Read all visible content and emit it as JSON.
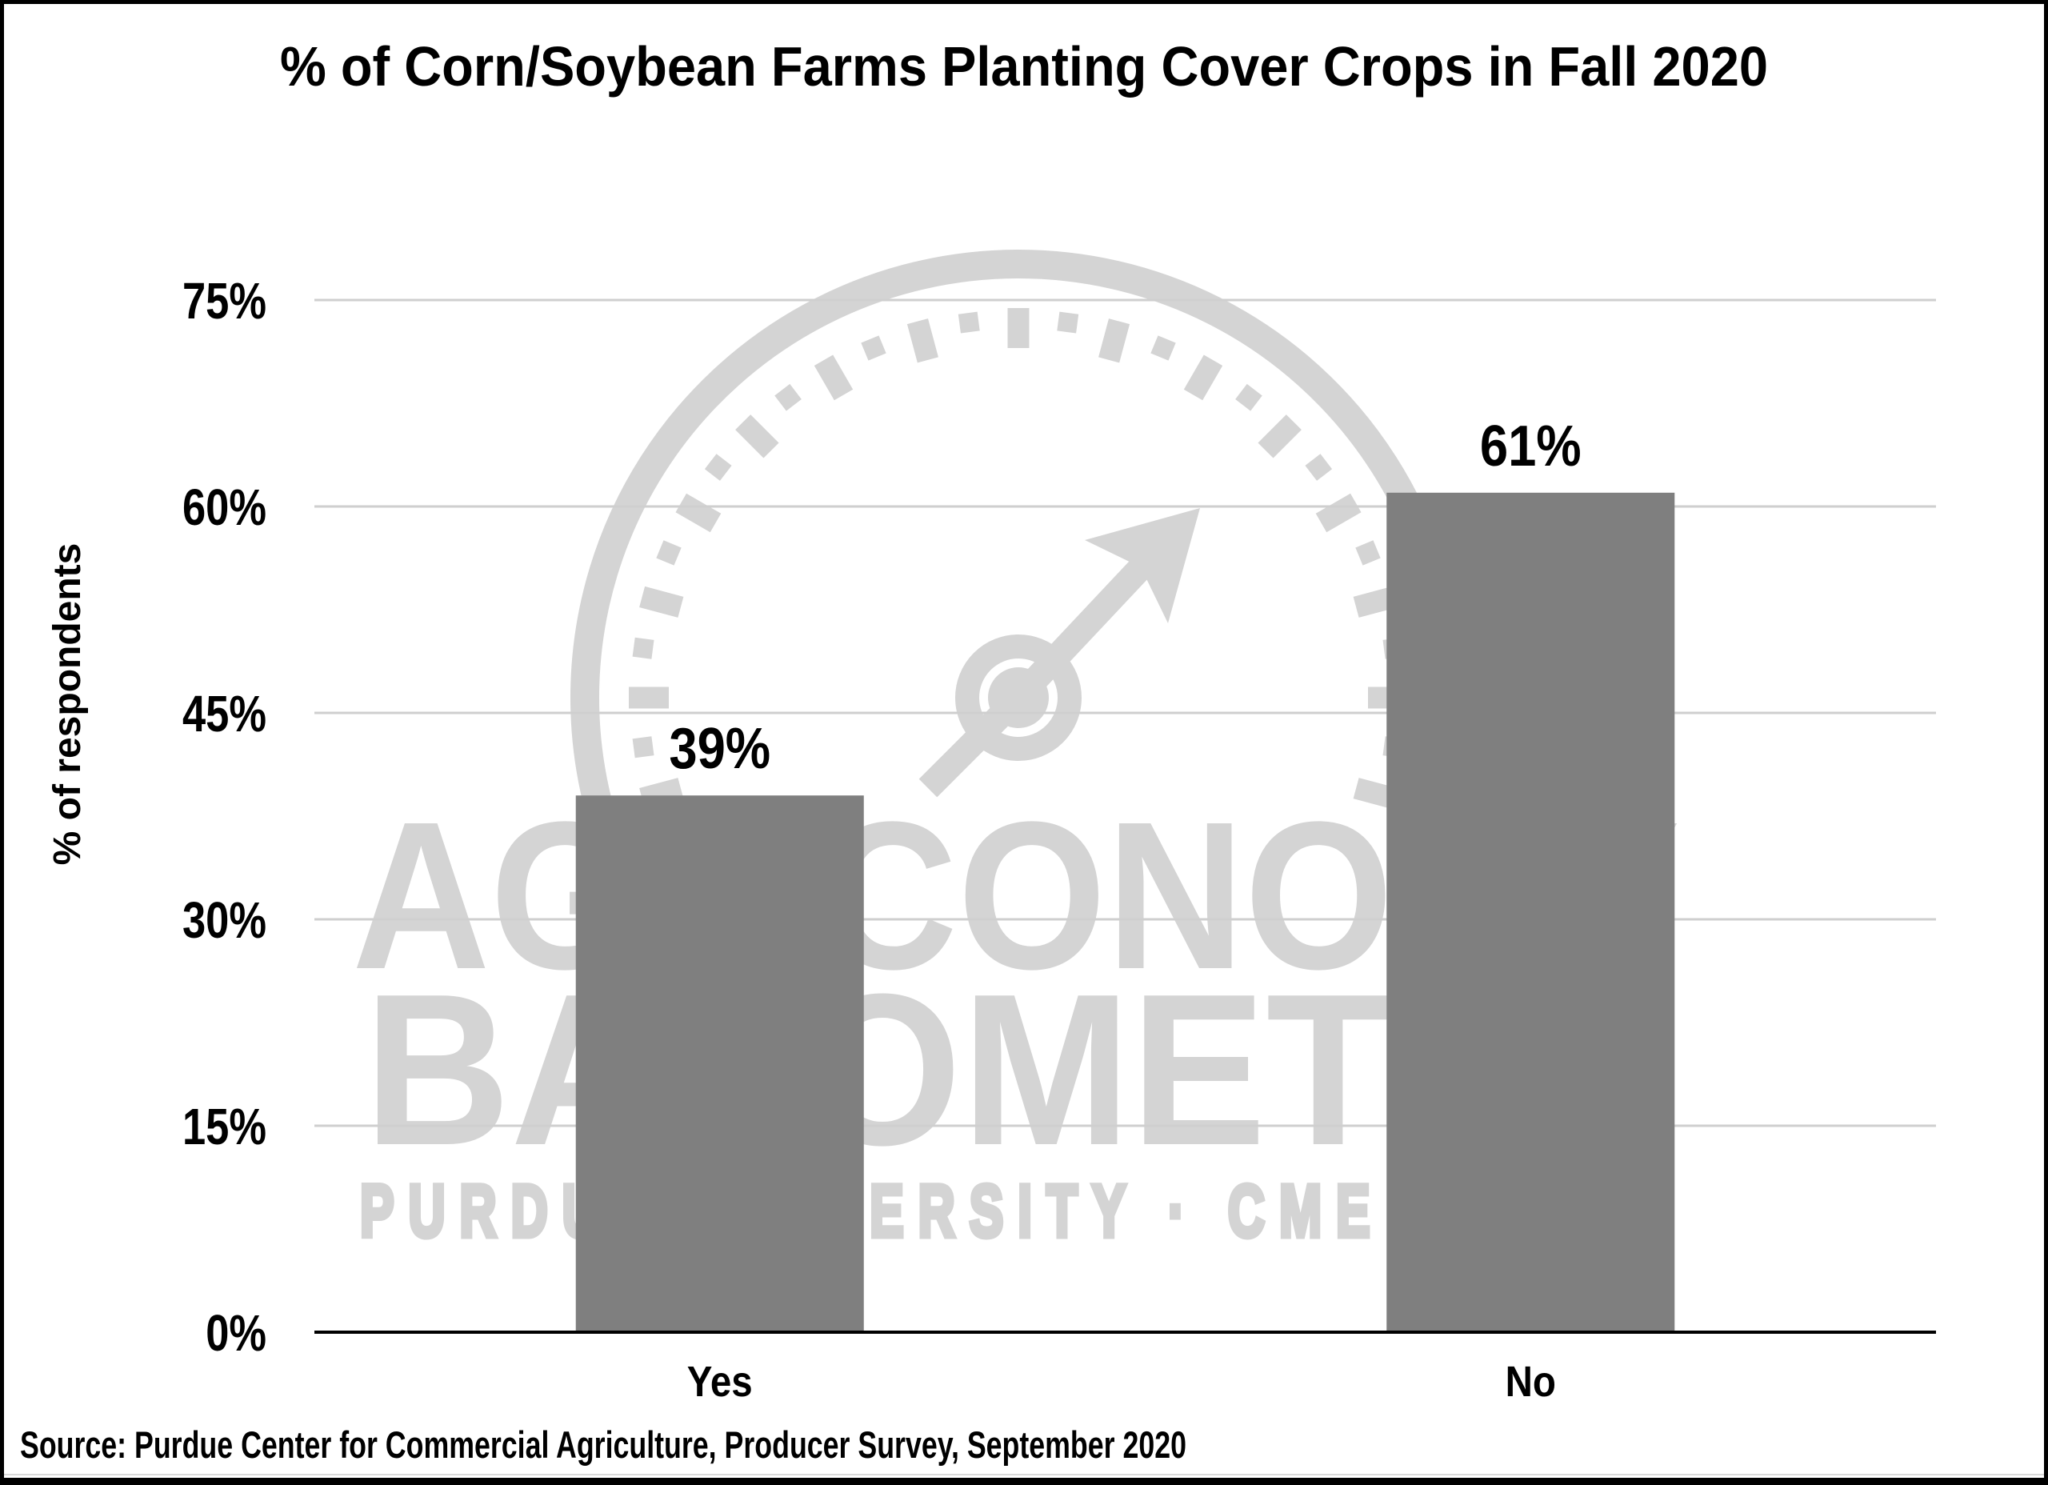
{
  "title": "% of Corn/Soybean Farms Planting Cover Crops in Fall 2020",
  "y_axis_title": "% of respondents",
  "source": "Source: Purdue Center for Commercial Agriculture, Producer Survey, September 2020",
  "watermark": {
    "line1": "AG ECONOMY",
    "line2": "BAROMETER",
    "line3": "PURDUE UNIVERSITY · CME GROUP",
    "color": "#d4d4d4"
  },
  "chart_data": {
    "type": "bar",
    "categories": [
      "Yes",
      "No"
    ],
    "values": [
      39,
      61
    ],
    "data_labels": [
      "39%",
      "61%"
    ],
    "title": "% of Corn/Soybean Farms Planting Cover Crops in Fall 2020",
    "xlabel": "",
    "ylabel": "% of respondents",
    "ylim": [
      0,
      75
    ],
    "yticks": [
      0,
      15,
      30,
      45,
      60,
      75
    ],
    "ytick_labels": [
      "0%",
      "15%",
      "30%",
      "45%",
      "60%",
      "75%"
    ],
    "grid": true,
    "legend": false,
    "bar_color": "#7f7f7f",
    "axis_color": "#000000",
    "gridline_color": "#cfcfcf",
    "text_color": "#000000"
  }
}
